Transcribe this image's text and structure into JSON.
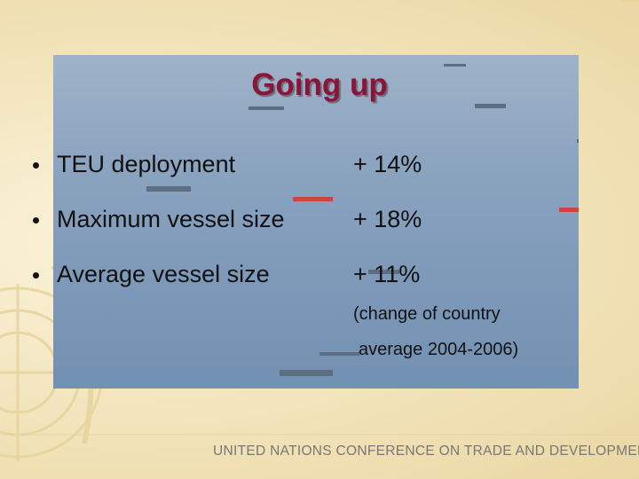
{
  "slide": {
    "title": "Going up",
    "bullets": [
      {
        "label": "TEU deployment",
        "value": "+ 14%"
      },
      {
        "label": "Maximum vessel size",
        "value": "+ 18%"
      },
      {
        "label": "Average vessel size",
        "value": "+ 11%"
      }
    ],
    "note": [
      "(change of country",
      "average 2004-2006)"
    ],
    "footer": "UNITED NATIONS CONFERENCE ON TRADE AND DEVELOPMENT"
  }
}
